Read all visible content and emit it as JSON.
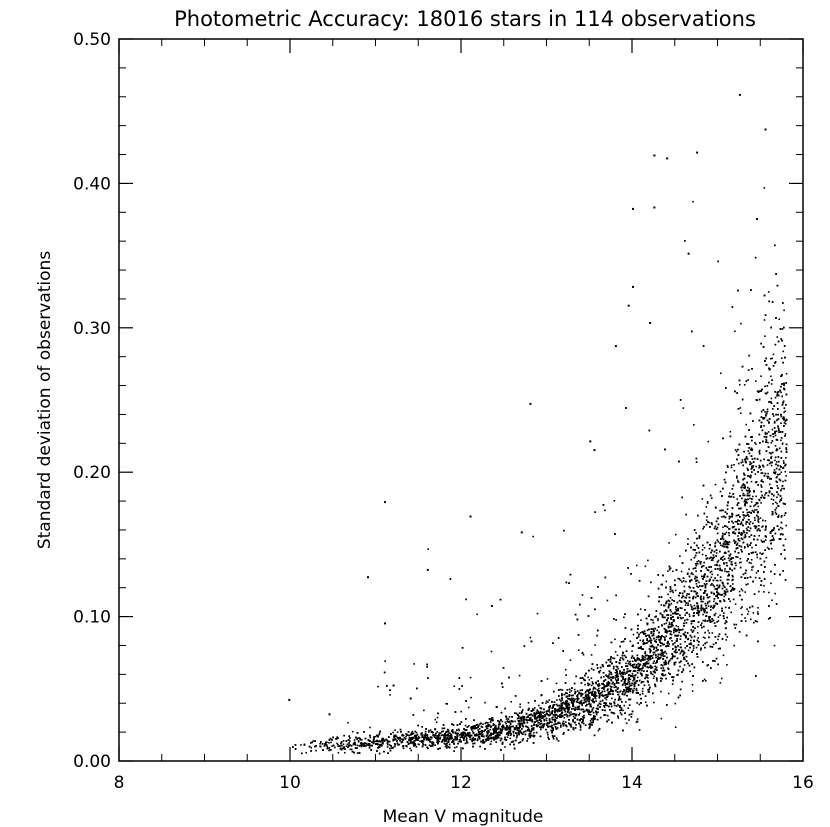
{
  "chart_data": {
    "type": "scatter",
    "title": "Photometric Accuracy: 18016 stars in 114 observations",
    "xlabel": "Mean V magnitude",
    "ylabel": "Standard deviation of observations",
    "xlim": [
      8,
      16
    ],
    "ylim": [
      0.0,
      0.5
    ],
    "x_ticks": [
      8,
      10,
      12,
      14,
      16
    ],
    "x_tick_labels": [
      "8",
      "10",
      "12",
      "14",
      "16"
    ],
    "y_ticks": [
      0.0,
      0.1,
      0.2,
      0.3,
      0.4,
      0.5
    ],
    "y_tick_labels": [
      "0.00",
      "0.10",
      "0.20",
      "0.30",
      "0.40",
      "0.50"
    ],
    "grid": false,
    "legend": "none",
    "marker_color": "#000000",
    "n_stars": 18016,
    "n_observations": 114,
    "trend": [
      {
        "x": 10.0,
        "y": 0.01
      },
      {
        "x": 11.0,
        "y": 0.013
      },
      {
        "x": 12.0,
        "y": 0.018
      },
      {
        "x": 12.5,
        "y": 0.022
      },
      {
        "x": 13.0,
        "y": 0.03
      },
      {
        "x": 13.5,
        "y": 0.042
      },
      {
        "x": 14.0,
        "y": 0.06
      },
      {
        "x": 14.5,
        "y": 0.09
      },
      {
        "x": 15.0,
        "y": 0.13
      },
      {
        "x": 15.3,
        "y": 0.165
      },
      {
        "x": 15.5,
        "y": 0.195
      },
      {
        "x": 15.7,
        "y": 0.21
      }
    ],
    "outliers": [
      {
        "x": 15.25,
        "y": 0.462
      },
      {
        "x": 15.55,
        "y": 0.438
      },
      {
        "x": 14.75,
        "y": 0.422
      },
      {
        "x": 14.25,
        "y": 0.42
      },
      {
        "x": 14.4,
        "y": 0.418
      },
      {
        "x": 14.0,
        "y": 0.383
      },
      {
        "x": 14.25,
        "y": 0.384
      },
      {
        "x": 15.45,
        "y": 0.376
      },
      {
        "x": 14.65,
        "y": 0.352
      },
      {
        "x": 13.95,
        "y": 0.316
      },
      {
        "x": 14.0,
        "y": 0.329
      },
      {
        "x": 13.8,
        "y": 0.288
      },
      {
        "x": 14.2,
        "y": 0.304
      },
      {
        "x": 12.8,
        "y": 0.248
      },
      {
        "x": 13.5,
        "y": 0.222
      },
      {
        "x": 13.55,
        "y": 0.216
      },
      {
        "x": 11.1,
        "y": 0.18
      },
      {
        "x": 12.1,
        "y": 0.17
      },
      {
        "x": 12.7,
        "y": 0.159
      },
      {
        "x": 10.9,
        "y": 0.128
      },
      {
        "x": 11.6,
        "y": 0.133
      },
      {
        "x": 11.1,
        "y": 0.096
      },
      {
        "x": 12.35,
        "y": 0.108
      },
      {
        "x": 9.98,
        "y": 0.043
      },
      {
        "x": 10.45,
        "y": 0.033
      },
      {
        "x": 11.2,
        "y": 0.053
      },
      {
        "x": 11.4,
        "y": 0.044
      }
    ]
  }
}
